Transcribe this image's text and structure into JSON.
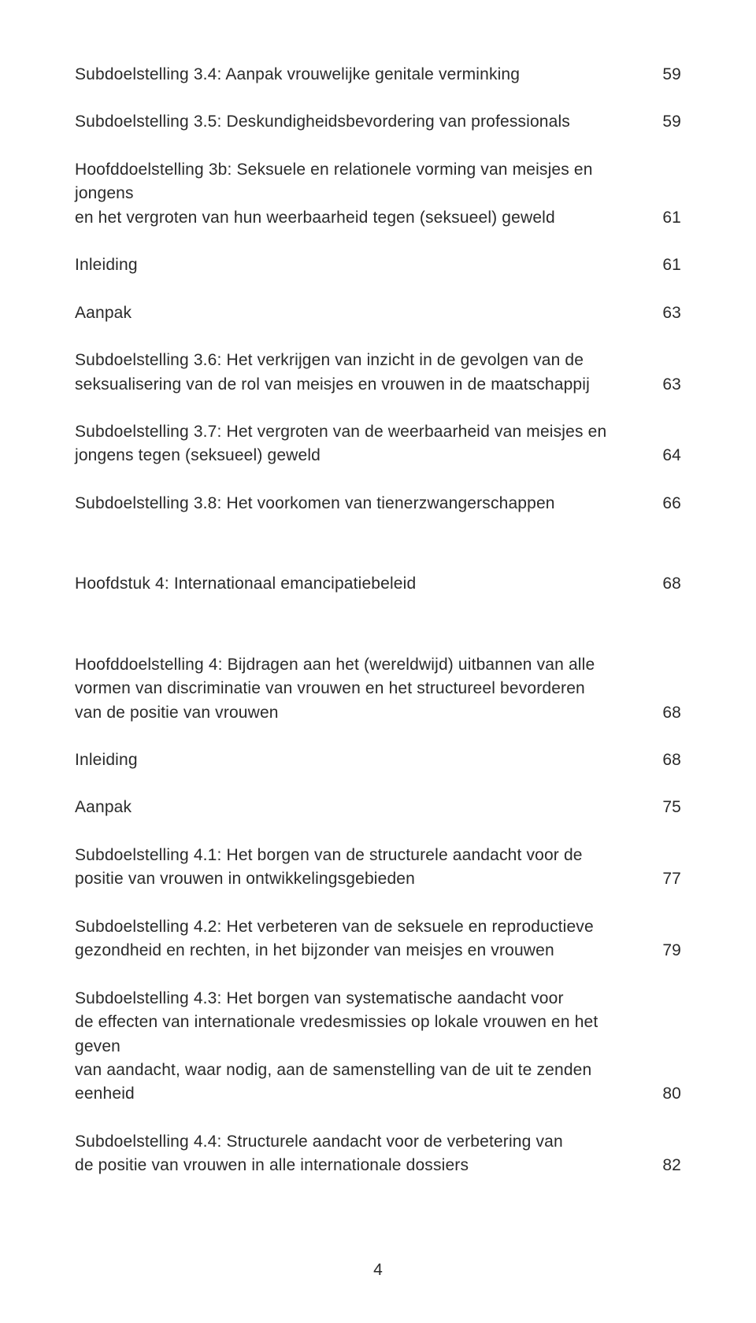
{
  "text_color": "#2a2a2a",
  "background_color": "#ffffff",
  "font_family": "Arial, Helvetica, sans-serif",
  "font_size_pt": 16,
  "page_number": "4",
  "entries": {
    "e0": {
      "label": "Subdoelstelling 3.4: Aanpak vrouwelijke genitale verminking",
      "page": "59"
    },
    "e1": {
      "label": "Subdoelstelling 3.5: Deskundigheidsbevordering van professionals",
      "page": "59"
    },
    "e2a": {
      "label": "Hoofddoelstelling 3b: Seksuele en relationele vorming van meisjes en jongens"
    },
    "e2b": {
      "label": "en het vergroten van hun weerbaarheid tegen (seksueel) geweld",
      "page": "61"
    },
    "e3": {
      "label": "Inleiding",
      "page": "61"
    },
    "e4": {
      "label": "Aanpak",
      "page": "63"
    },
    "e5a": {
      "label": "Subdoelstelling 3.6: Het verkrijgen van inzicht in de gevolgen van de"
    },
    "e5b": {
      "label": "seksualisering van de rol van meisjes en vrouwen in de maatschappij",
      "page": "63"
    },
    "e6a": {
      "label": "Subdoelstelling 3.7: Het vergroten van de weerbaarheid van meisjes en"
    },
    "e6b": {
      "label": "jongens tegen (seksueel) geweld",
      "page": "64"
    },
    "e7": {
      "label": "Subdoelstelling 3.8: Het voorkomen van tienerzwangerschappen",
      "page": "66"
    },
    "e8": {
      "label": "Hoofdstuk 4: Internationaal emancipatiebeleid",
      "page": "68"
    },
    "e9a": {
      "label": "Hoofddoelstelling 4: Bijdragen aan het (wereldwijd) uitbannen van alle"
    },
    "e9b": {
      "label": "vormen van discriminatie van vrouwen en het structureel bevorderen"
    },
    "e9c": {
      "label": "van de positie van vrouwen",
      "page": "68"
    },
    "e10": {
      "label": "Inleiding",
      "page": "68"
    },
    "e11": {
      "label": "Aanpak",
      "page": "75"
    },
    "e12a": {
      "label": "Subdoelstelling 4.1: Het borgen van de structurele aandacht voor de"
    },
    "e12b": {
      "label": "positie van vrouwen in ontwikkelingsgebieden",
      "page": "77"
    },
    "e13a": {
      "label": "Subdoelstelling 4.2: Het verbeteren van de seksuele en reproductieve"
    },
    "e13b": {
      "label": "gezondheid en rechten, in het bijzonder van meisjes en vrouwen",
      "page": "79"
    },
    "e14a": {
      "label": "Subdoelstelling 4.3: Het borgen van systematische aandacht voor"
    },
    "e14b": {
      "label": "de effecten van internationale vredesmissies op lokale vrouwen en het geven"
    },
    "e14c": {
      "label": "van aandacht, waar nodig, aan de samenstelling van de uit te zenden eenheid",
      "page": "80"
    },
    "e15a": {
      "label": "Subdoelstelling 4.4: Structurele aandacht voor de verbetering van"
    },
    "e15b": {
      "label": "de positie van vrouwen in alle internationale dossiers",
      "page": "82"
    }
  }
}
